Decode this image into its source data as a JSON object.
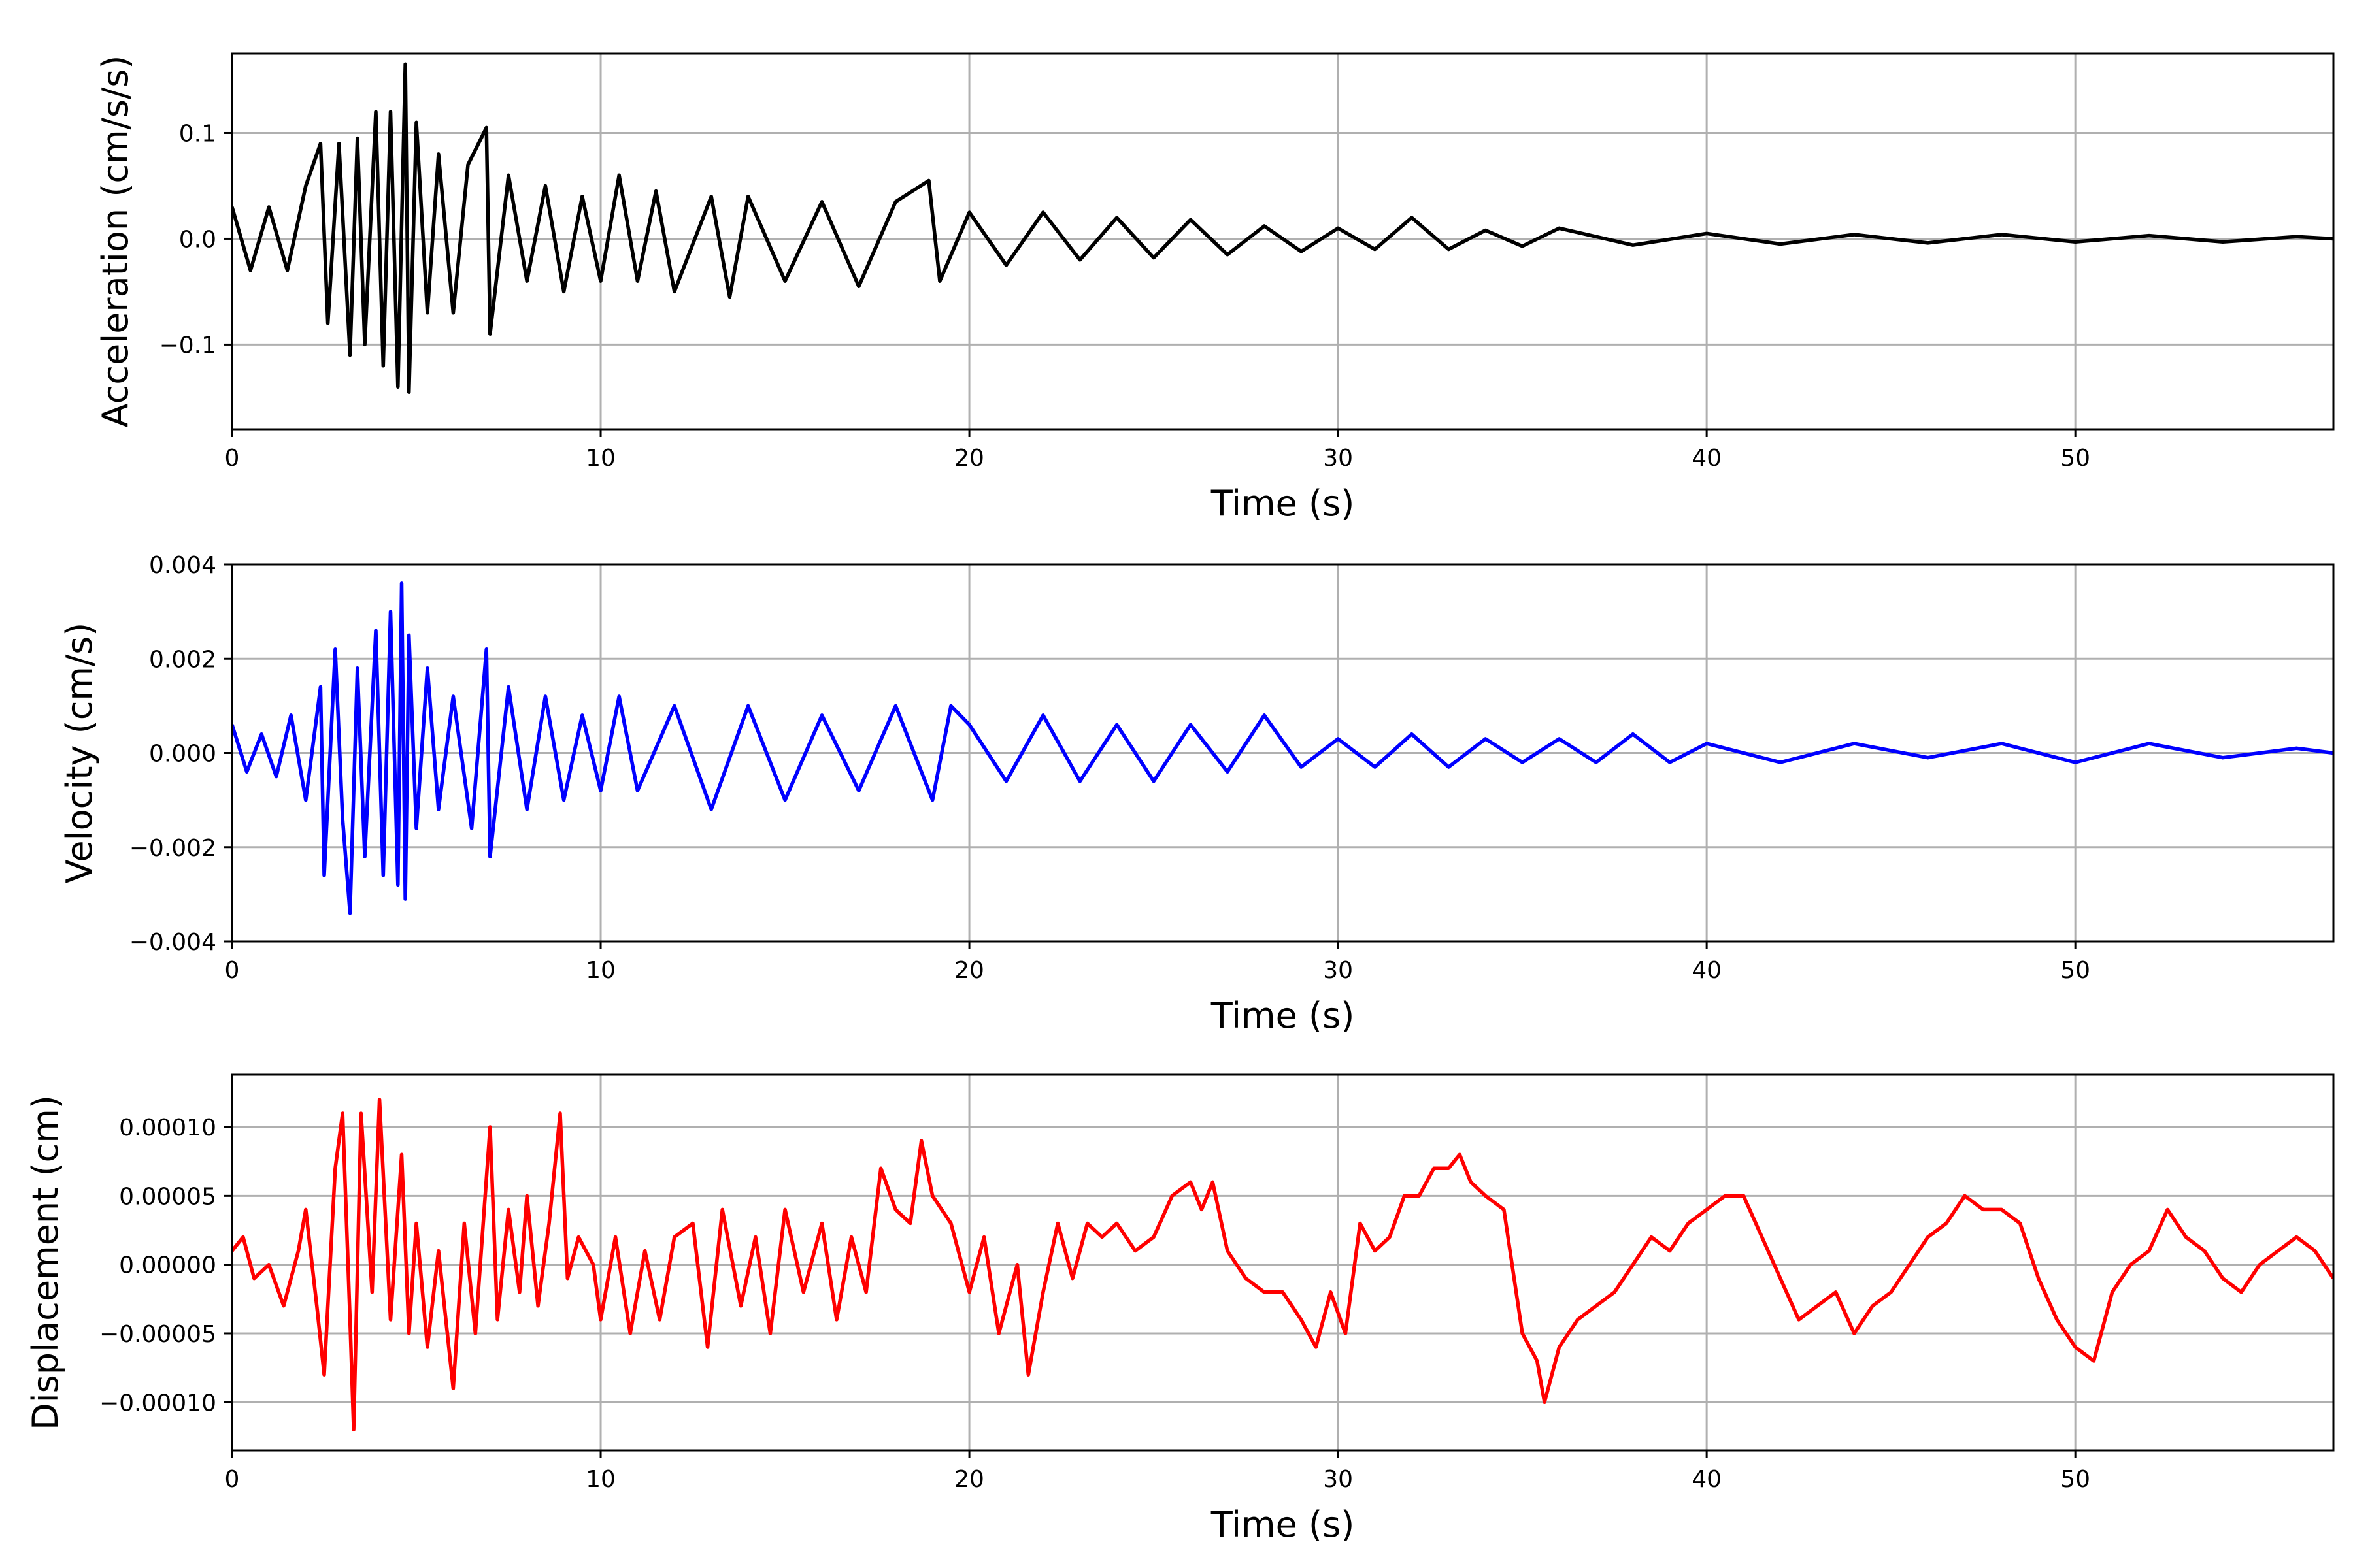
{
  "chart_data": [
    {
      "type": "line",
      "title": "",
      "xlabel": "Time (s)",
      "ylabel": "Acceleration (cm/s/s)",
      "xlim": [
        0,
        57
      ],
      "ylim": [
        -0.18,
        0.175
      ],
      "xticks": [
        0,
        10,
        20,
        30,
        40,
        50
      ],
      "yticks": [
        -0.1,
        0.0,
        0.1
      ],
      "ytick_labels": [
        "−0.1",
        "0.0",
        "0.1"
      ],
      "grid": true,
      "series": [
        {
          "color": "#000000",
          "x": [
            0,
            0.5,
            1.0,
            1.5,
            2.0,
            2.4,
            2.6,
            2.9,
            3.2,
            3.4,
            3.6,
            3.9,
            4.1,
            4.3,
            4.5,
            4.7,
            4.8,
            5.0,
            5.3,
            5.6,
            6.0,
            6.4,
            6.9,
            7.0,
            7.5,
            8.0,
            8.5,
            9.0,
            9.5,
            10.0,
            10.5,
            11.0,
            11.5,
            12.0,
            13.0,
            13.5,
            14.0,
            15.0,
            16.0,
            17.0,
            18.0,
            18.9,
            19.2,
            20.0,
            21.0,
            22.0,
            23.0,
            24.0,
            25.0,
            26.0,
            27.0,
            28.0,
            29.0,
            30.0,
            31.0,
            32.0,
            33.0,
            34.0,
            35.0,
            36.0,
            38.0,
            40.0,
            42.0,
            44.0,
            46.0,
            48.0,
            50.0,
            52.0,
            54.0,
            56.0,
            57.0
          ],
          "values": [
            0.03,
            -0.03,
            0.03,
            -0.03,
            0.05,
            0.09,
            -0.08,
            0.09,
            -0.11,
            0.095,
            -0.1,
            0.12,
            -0.12,
            0.12,
            -0.14,
            0.165,
            -0.145,
            0.11,
            -0.07,
            0.08,
            -0.07,
            0.07,
            0.105,
            -0.09,
            0.06,
            -0.04,
            0.05,
            -0.05,
            0.04,
            -0.04,
            0.06,
            -0.04,
            0.045,
            -0.05,
            0.04,
            -0.055,
            0.04,
            -0.04,
            0.035,
            -0.045,
            0.035,
            0.055,
            -0.04,
            0.025,
            -0.025,
            0.025,
            -0.02,
            0.02,
            -0.018,
            0.018,
            -0.015,
            0.012,
            -0.012,
            0.01,
            -0.01,
            0.02,
            -0.01,
            0.008,
            -0.007,
            0.01,
            -0.006,
            0.005,
            -0.005,
            0.004,
            -0.004,
            0.004,
            -0.003,
            0.003,
            -0.003,
            0.002,
            0.0
          ]
        }
      ]
    },
    {
      "type": "line",
      "title": "",
      "xlabel": "Time (s)",
      "ylabel": "Velocity (cm/s)",
      "xlim": [
        0,
        57
      ],
      "ylim": [
        -0.004,
        0.004
      ],
      "xticks": [
        0,
        10,
        20,
        30,
        40,
        50
      ],
      "yticks": [
        -0.004,
        -0.002,
        0.0,
        0.002,
        0.004
      ],
      "ytick_labels": [
        "−0.004",
        "−0.002",
        "0.000",
        "0.002",
        "0.004"
      ],
      "grid": true,
      "series": [
        {
          "color": "#0000ff",
          "x": [
            0,
            0.4,
            0.8,
            1.2,
            1.6,
            2.0,
            2.4,
            2.5,
            2.8,
            3.0,
            3.2,
            3.4,
            3.6,
            3.9,
            4.1,
            4.3,
            4.5,
            4.6,
            4.7,
            4.8,
            5.0,
            5.3,
            5.6,
            6.0,
            6.5,
            6.9,
            7.0,
            7.5,
            8.0,
            8.5,
            9.0,
            9.5,
            10.0,
            10.5,
            11.0,
            12.0,
            13.0,
            14.0,
            15.0,
            16.0,
            17.0,
            18.0,
            19.0,
            19.5,
            20.0,
            21.0,
            22.0,
            23.0,
            24.0,
            25.0,
            26.0,
            27.0,
            28.0,
            29.0,
            30.0,
            31.0,
            32.0,
            33.0,
            34.0,
            35.0,
            36.0,
            37.0,
            38.0,
            39.0,
            40.0,
            42.0,
            44.0,
            46.0,
            48.0,
            50.0,
            52.0,
            54.0,
            56.0,
            57.0
          ],
          "values": [
            0.0006,
            -0.0004,
            0.0004,
            -0.0005,
            0.0008,
            -0.001,
            0.0014,
            -0.0026,
            0.0022,
            -0.0014,
            -0.0034,
            0.0018,
            -0.0022,
            0.0026,
            -0.0026,
            0.003,
            -0.0028,
            0.0036,
            -0.0031,
            0.0025,
            -0.0016,
            0.0018,
            -0.0012,
            0.0012,
            -0.0016,
            0.0022,
            -0.0022,
            0.0014,
            -0.0012,
            0.0012,
            -0.001,
            0.0008,
            -0.0008,
            0.0012,
            -0.0008,
            0.001,
            -0.0012,
            0.001,
            -0.001,
            0.0008,
            -0.0008,
            0.001,
            -0.001,
            0.001,
            0.0006,
            -0.0006,
            0.0008,
            -0.0006,
            0.0006,
            -0.0006,
            0.0006,
            -0.0004,
            0.0008,
            -0.0003,
            0.0003,
            -0.0003,
            0.0004,
            -0.0003,
            0.0003,
            -0.0002,
            0.0003,
            -0.0002,
            0.0004,
            -0.0002,
            0.0002,
            -0.0002,
            0.0002,
            -0.0001,
            0.0002,
            -0.0002,
            0.0002,
            -0.0001,
            0.0001,
            0.0
          ]
        }
      ]
    },
    {
      "type": "line",
      "title": "",
      "xlabel": "Time (s)",
      "ylabel": "Displacement (cm)",
      "xlim": [
        0,
        57
      ],
      "ylim": [
        -0.000135,
        0.000138
      ],
      "xticks": [
        0,
        10,
        20,
        30,
        40,
        50
      ],
      "yticks": [
        -0.0001,
        -5e-05,
        0.0,
        5e-05,
        0.0001
      ],
      "ytick_labels": [
        "−0.00010",
        "−0.00005",
        "0.00000",
        "0.00005",
        "0.00010"
      ],
      "grid": true,
      "series": [
        {
          "color": "#ff0000",
          "x": [
            0,
            0.3,
            0.6,
            1.0,
            1.4,
            1.8,
            2.0,
            2.3,
            2.5,
            2.8,
            3.0,
            3.2,
            3.3,
            3.5,
            3.8,
            4.0,
            4.3,
            4.6,
            4.8,
            5.0,
            5.3,
            5.6,
            6.0,
            6.3,
            6.6,
            7.0,
            7.2,
            7.5,
            7.8,
            8.0,
            8.3,
            8.6,
            8.9,
            9.1,
            9.4,
            9.8,
            10.0,
            10.4,
            10.8,
            11.2,
            11.6,
            12.0,
            12.5,
            12.9,
            13.3,
            13.8,
            14.2,
            14.6,
            15.0,
            15.5,
            16.0,
            16.4,
            16.8,
            17.2,
            17.6,
            18.0,
            18.4,
            18.7,
            19.0,
            19.5,
            20.0,
            20.4,
            20.8,
            21.3,
            21.6,
            22.0,
            22.4,
            22.8,
            23.2,
            23.6,
            24.0,
            24.5,
            25.0,
            25.5,
            26.0,
            26.3,
            26.6,
            27.0,
            27.5,
            28.0,
            28.5,
            29.0,
            29.4,
            29.8,
            30.2,
            30.6,
            31.0,
            31.4,
            31.8,
            32.2,
            32.6,
            33.0,
            33.3,
            33.6,
            34.0,
            34.5,
            35.0,
            35.4,
            35.6,
            36.0,
            36.5,
            37.0,
            37.5,
            38.0,
            38.5,
            39.0,
            39.5,
            40.0,
            40.5,
            41.0,
            41.5,
            42.0,
            42.5,
            43.0,
            43.5,
            44.0,
            44.5,
            45.0,
            45.5,
            46.0,
            46.5,
            47.0,
            47.5,
            48.0,
            48.5,
            49.0,
            49.5,
            50.0,
            50.5,
            51.0,
            51.5,
            52.0,
            52.5,
            53.0,
            53.5,
            54.0,
            54.5,
            55.0,
            55.5,
            56.0,
            56.5,
            57.0
          ],
          "values": [
            1e-05,
            2e-05,
            -1e-05,
            0.0,
            -3e-05,
            1e-05,
            4e-05,
            -3e-05,
            -8e-05,
            7e-05,
            0.00011,
            -4e-05,
            -0.00012,
            0.00011,
            -2e-05,
            0.00012,
            -4e-05,
            8e-05,
            -5e-05,
            3e-05,
            -6e-05,
            1e-05,
            -9e-05,
            3e-05,
            -5e-05,
            0.0001,
            -4e-05,
            4e-05,
            -2e-05,
            5e-05,
            -3e-05,
            3e-05,
            0.00011,
            -1e-05,
            2e-05,
            0.0,
            -4e-05,
            2e-05,
            -5e-05,
            1e-05,
            -4e-05,
            2e-05,
            3e-05,
            -6e-05,
            4e-05,
            -3e-05,
            2e-05,
            -5e-05,
            4e-05,
            -2e-05,
            3e-05,
            -4e-05,
            2e-05,
            -2e-05,
            7e-05,
            4e-05,
            3e-05,
            9e-05,
            5e-05,
            3e-05,
            -2e-05,
            2e-05,
            -5e-05,
            0.0,
            -8e-05,
            -2e-05,
            3e-05,
            -1e-05,
            3e-05,
            2e-05,
            3e-05,
            1e-05,
            2e-05,
            5e-05,
            6e-05,
            4e-05,
            6e-05,
            1e-05,
            -1e-05,
            -2e-05,
            -2e-05,
            -4e-05,
            -6e-05,
            -2e-05,
            -5e-05,
            3e-05,
            1e-05,
            2e-05,
            5e-05,
            5e-05,
            7e-05,
            7e-05,
            8e-05,
            6e-05,
            5e-05,
            4e-05,
            -5e-05,
            -7e-05,
            -0.0001,
            -6e-05,
            -4e-05,
            -3e-05,
            -2e-05,
            0.0,
            2e-05,
            1e-05,
            3e-05,
            4e-05,
            5e-05,
            5e-05,
            2e-05,
            -1e-05,
            -4e-05,
            -3e-05,
            -2e-05,
            -5e-05,
            -3e-05,
            -2e-05,
            0.0,
            2e-05,
            3e-05,
            5e-05,
            4e-05,
            4e-05,
            3e-05,
            -1e-05,
            -4e-05,
            -6e-05,
            -7e-05,
            -2e-05,
            0.0,
            1e-05,
            4e-05,
            2e-05,
            1e-05,
            -1e-05,
            -2e-05,
            0.0,
            1e-05,
            2e-05,
            1e-05,
            -1e-05
          ]
        }
      ]
    }
  ]
}
